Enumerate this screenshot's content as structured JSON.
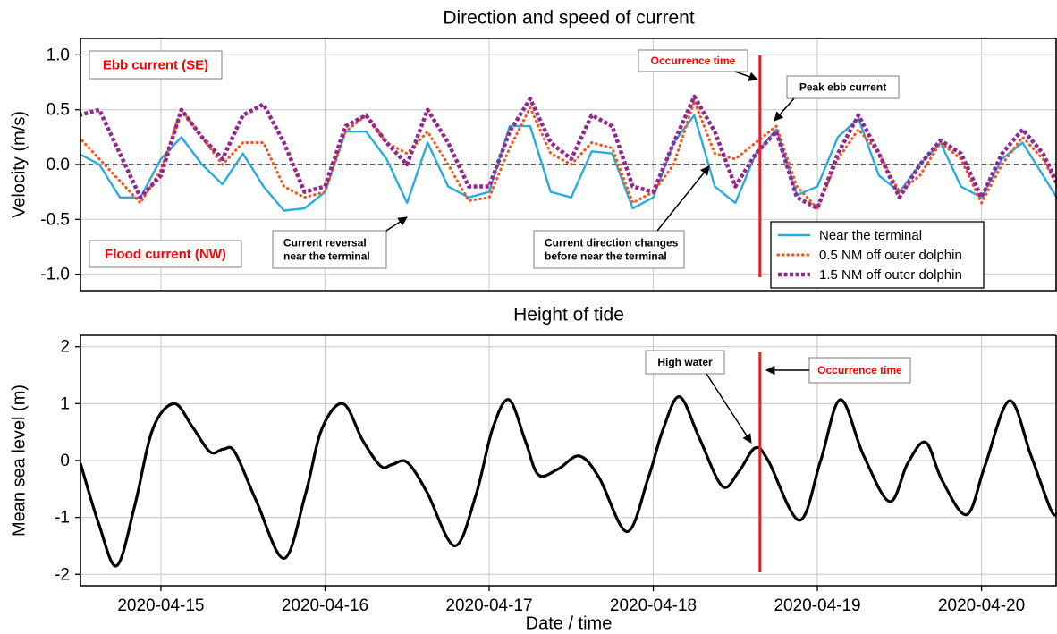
{
  "chart_data": [
    {
      "type": "line",
      "title": "Direction and speed of current",
      "ylabel": "Velocity (m/s)",
      "x": [
        14.5,
        14.625,
        14.75,
        14.875,
        15.0,
        15.125,
        15.25,
        15.375,
        15.5,
        15.625,
        15.75,
        15.875,
        16.0,
        16.125,
        16.25,
        16.375,
        16.5,
        16.625,
        16.75,
        16.875,
        17.0,
        17.125,
        17.25,
        17.375,
        17.5,
        17.625,
        17.75,
        17.875,
        18.0,
        18.125,
        18.25,
        18.375,
        18.5,
        18.625,
        18.75,
        18.875,
        19.0,
        19.125,
        19.25,
        19.375,
        19.5,
        19.625,
        19.75,
        19.875,
        20.0,
        20.125,
        20.25,
        20.375,
        20.5
      ],
      "series": [
        {
          "name": "Near the terminal",
          "color": "#29abe2",
          "style": "solid",
          "values": [
            0.1,
            0.0,
            -0.3,
            -0.3,
            0.05,
            0.25,
            0.0,
            -0.18,
            0.1,
            -0.2,
            -0.42,
            -0.4,
            -0.25,
            0.3,
            0.3,
            0.05,
            -0.35,
            0.2,
            -0.2,
            -0.3,
            -0.25,
            0.35,
            0.35,
            -0.25,
            -0.3,
            0.12,
            0.1,
            -0.4,
            -0.3,
            0.2,
            0.45,
            -0.2,
            -0.35,
            0.1,
            0.32,
            -0.28,
            -0.2,
            0.25,
            0.42,
            -0.1,
            -0.25,
            0.0,
            0.2,
            -0.2,
            -0.3,
            0.05,
            0.2,
            -0.1,
            -0.4
          ]
        },
        {
          "name": "0.5 NM off outer dolphin",
          "color": "#f15a24",
          "style": "dotted",
          "values": [
            0.25,
            0.05,
            -0.15,
            -0.35,
            -0.05,
            0.5,
            0.25,
            0.0,
            0.2,
            0.2,
            -0.2,
            -0.3,
            -0.25,
            0.3,
            0.45,
            0.2,
            0.1,
            0.3,
            0.0,
            -0.33,
            -0.3,
            0.15,
            0.52,
            0.1,
            0.0,
            0.2,
            0.15,
            -0.35,
            -0.25,
            0.0,
            0.58,
            0.1,
            0.05,
            0.2,
            0.35,
            -0.2,
            -0.4,
            0.05,
            0.32,
            0.1,
            -0.25,
            -0.1,
            0.2,
            0.05,
            -0.35,
            0.0,
            0.25,
            0.05,
            -0.3
          ]
        },
        {
          "name": "1.5 NM off outer dolphin",
          "color": "#93278f",
          "style": "dashed",
          "values": [
            0.45,
            0.5,
            0.1,
            -0.3,
            -0.1,
            0.5,
            0.25,
            0.05,
            0.45,
            0.55,
            0.2,
            -0.25,
            -0.2,
            0.35,
            0.45,
            0.2,
            0.0,
            0.5,
            0.2,
            -0.2,
            -0.2,
            0.3,
            0.6,
            0.2,
            0.05,
            0.45,
            0.35,
            -0.2,
            -0.25,
            0.2,
            0.62,
            0.3,
            -0.2,
            0.1,
            0.3,
            -0.3,
            -0.4,
            0.1,
            0.45,
            0.1,
            -0.3,
            0.0,
            0.22,
            0.1,
            -0.3,
            0.1,
            0.32,
            0.1,
            -0.3
          ]
        }
      ],
      "xlim": [
        14.51,
        20.46
      ],
      "ylim": [
        -1.15,
        1.15
      ],
      "yticks": [
        {
          "value": 1,
          "label": "1.0"
        },
        0.5,
        {
          "value": 0,
          "label": "0.0"
        },
        -0.5,
        {
          "value": -1,
          "label": "-1.0"
        }
      ],
      "grid": true,
      "zero_line": true,
      "legend": "lower right",
      "occurrence_x": 18.65,
      "annotations": [
        {
          "lines": [
            "Ebb current (SE)"
          ],
          "color": "#ff0000"
        },
        {
          "lines": [
            "Flood current (NW)"
          ],
          "color": "#ff0000"
        },
        {
          "lines": [
            "Occurrence time"
          ],
          "color": "#ff0000"
        },
        {
          "lines": [
            "Peak ebb current"
          ],
          "color": "#000000"
        },
        {
          "lines": [
            "Current reversal",
            "near the terminal"
          ],
          "color": "#000000"
        },
        {
          "lines": [
            "Current direction changes",
            "before near the terminal"
          ],
          "color": "#000000"
        }
      ]
    },
    {
      "type": "line",
      "title": "Height of tide",
      "xlabel": "Date / time",
      "ylabel": "Mean sea level (m)",
      "x": [
        14.51,
        14.62,
        14.73,
        14.84,
        14.95,
        15.08,
        15.19,
        15.3,
        15.38,
        15.45,
        15.58,
        15.75,
        15.88,
        15.98,
        16.11,
        16.23,
        16.34,
        16.41,
        16.5,
        16.62,
        16.79,
        16.92,
        17.02,
        17.12,
        17.22,
        17.3,
        17.42,
        17.55,
        17.67,
        17.84,
        17.97,
        18.06,
        18.16,
        18.28,
        18.42,
        18.52,
        18.62,
        18.7,
        18.89,
        19.02,
        19.14,
        19.28,
        19.44,
        19.55,
        19.66,
        19.76,
        19.91,
        20.02,
        20.17,
        20.3,
        20.42,
        20.46
      ],
      "series": [
        {
          "color": "#000000",
          "style": "solid",
          "values": [
            -0.05,
            -1.1,
            -1.85,
            -0.8,
            0.55,
            1.0,
            0.6,
            0.15,
            0.2,
            0.15,
            -0.7,
            -1.72,
            -0.6,
            0.55,
            1.0,
            0.35,
            -0.1,
            -0.07,
            -0.03,
            -0.55,
            -1.5,
            -0.6,
            0.55,
            1.07,
            0.35,
            -0.25,
            -0.15,
            0.08,
            -0.3,
            -1.25,
            -0.3,
            0.55,
            1.12,
            0.4,
            -0.45,
            -0.2,
            0.22,
            0.0,
            -1.05,
            0.0,
            1.07,
            0.1,
            -0.72,
            -0.05,
            0.32,
            -0.35,
            -0.95,
            -0.1,
            1.05,
            0.1,
            -0.85,
            -0.95
          ]
        }
      ],
      "xlim": [
        14.51,
        20.46
      ],
      "ylim": [
        -2.2,
        2.2
      ],
      "xticks": [
        {
          "value": 15,
          "label": "2020-04-15"
        },
        {
          "value": 16,
          "label": "2020-04-16"
        },
        {
          "value": 17,
          "label": "2020-04-17"
        },
        {
          "value": 18,
          "label": "2020-04-18"
        },
        {
          "value": 19,
          "label": "2020-04-19"
        },
        {
          "value": 20,
          "label": "2020-04-20"
        }
      ],
      "yticks": [
        2,
        1,
        0,
        -1,
        -2
      ],
      "grid": true,
      "smooth": true,
      "occurrence_x": 18.65,
      "annotations": [
        {
          "lines": [
            "High water"
          ],
          "color": "#000000"
        },
        {
          "lines": [
            "Occurrence time"
          ],
          "color": "#ff0000"
        }
      ]
    }
  ]
}
